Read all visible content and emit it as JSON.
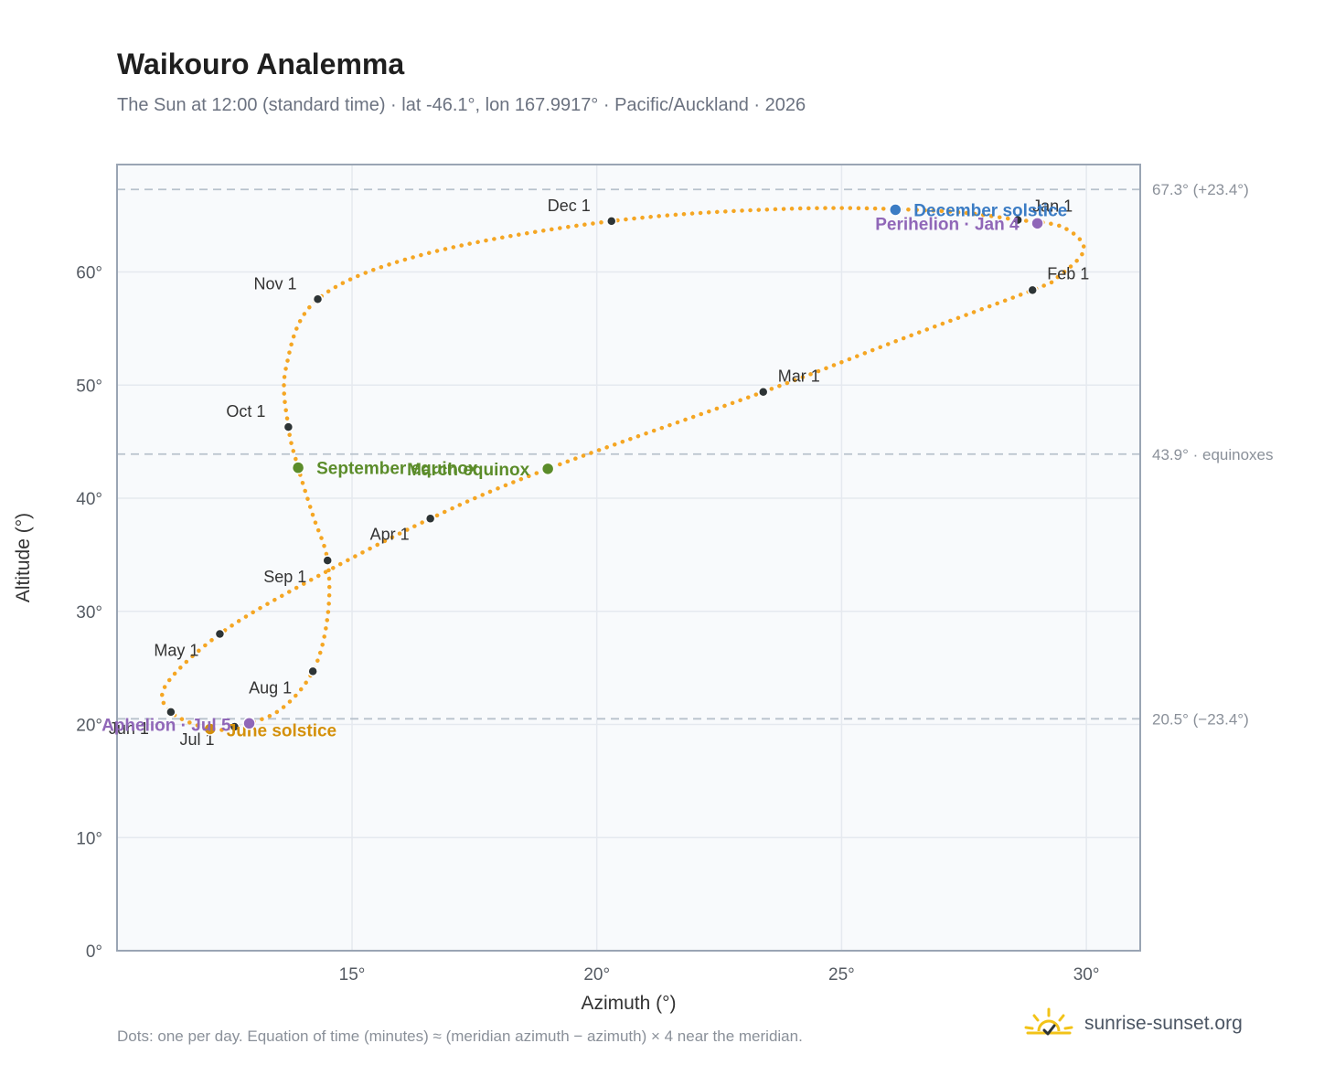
{
  "header": {
    "title": "Waikouro Analemma",
    "subtitle": "The Sun at 12:00 (standard time) · lat -46.1°, lon 167.9917° · Pacific/Auckland · 2026"
  },
  "footer": {
    "note": "Dots: one per day. Equation of time (minutes) ≈ (meridian azimuth − azimuth) × 4 near the meridian.",
    "brand": "sunrise-sunset.org",
    "brand_icon": "sun-check-icon"
  },
  "colors": {
    "curve": "#f5a623",
    "month_marker": "#2d3436",
    "equinox": "#5b8c2a",
    "december_solstice": "#3b7cc4",
    "june_solstice": "#d4900a",
    "apsis": "#9067b8",
    "reference_line": "#b8c2cc",
    "plot_bg": "#f8fafc",
    "grid": "#e5e9ef"
  },
  "chart_data": {
    "type": "scatter",
    "xlabel": "Azimuth (°)",
    "ylabel": "Altitude (°)",
    "xlim": [
      10.2,
      31.1
    ],
    "ylim": [
      0,
      69.5
    ],
    "x_ticks": [
      {
        "value": 15,
        "label": "15°"
      },
      {
        "value": 20,
        "label": "20°"
      },
      {
        "value": 25,
        "label": "25°"
      },
      {
        "value": 30,
        "label": "30°"
      }
    ],
    "y_ticks": [
      {
        "value": 0,
        "label": "0°"
      },
      {
        "value": 10,
        "label": "10°"
      },
      {
        "value": 20,
        "label": "20°"
      },
      {
        "value": 30,
        "label": "30°"
      },
      {
        "value": 40,
        "label": "40°"
      },
      {
        "value": 50,
        "label": "50°"
      },
      {
        "value": 60,
        "label": "60°"
      }
    ],
    "grid": true,
    "reference_lines": [
      {
        "value": 67.3,
        "label": "67.3° (+23.4°)"
      },
      {
        "value": 43.9,
        "label": "43.9° · equinoxes"
      },
      {
        "value": 20.5,
        "label": "20.5° (−23.4°)"
      }
    ],
    "month_markers": [
      {
        "label": "Jan 1",
        "x": 28.6,
        "y": 64.6
      },
      {
        "label": "Feb 1",
        "x": 28.9,
        "y": 58.4
      },
      {
        "label": "Mar 1",
        "x": 23.4,
        "y": 49.4
      },
      {
        "label": "Apr 1",
        "x": 16.6,
        "y": 38.2
      },
      {
        "label": "May 1",
        "x": 12.3,
        "y": 28.0
      },
      {
        "label": "Jun 1",
        "x": 11.3,
        "y": 21.1
      },
      {
        "label": "Jul 1",
        "x": 12.6,
        "y": 19.8
      },
      {
        "label": "Aug 1",
        "x": 14.2,
        "y": 24.7
      },
      {
        "label": "Sep 1",
        "x": 14.5,
        "y": 34.5
      },
      {
        "label": "Oct 1",
        "x": 13.7,
        "y": 46.3
      },
      {
        "label": "Nov 1",
        "x": 14.3,
        "y": 57.6
      },
      {
        "label": "Dec 1",
        "x": 20.3,
        "y": 64.5
      }
    ],
    "events": [
      {
        "label": "December solstice",
        "x": 26.1,
        "y": 65.5,
        "kind": "december_solstice"
      },
      {
        "label": "Perihelion · Jan 4",
        "x": 29.0,
        "y": 64.3,
        "kind": "apsis"
      },
      {
        "label": "March equinox",
        "x": 19.0,
        "y": 42.6,
        "kind": "equinox"
      },
      {
        "label": "September equinox",
        "x": 13.9,
        "y": 42.7,
        "kind": "equinox"
      },
      {
        "label": "June solstice",
        "x": 12.1,
        "y": 19.6,
        "kind": "june_solstice"
      },
      {
        "label": "Aphelion · Jul 5",
        "x": 12.9,
        "y": 20.1,
        "kind": "apsis"
      }
    ],
    "daily_path": [
      {
        "x": 28.6,
        "y": 64.6
      },
      {
        "x": 29.5,
        "y": 64.0
      },
      {
        "x": 29.95,
        "y": 62.0
      },
      {
        "x": 29.4,
        "y": 59.5
      },
      {
        "x": 28.9,
        "y": 58.4
      },
      {
        "x": 26.3,
        "y": 54.2
      },
      {
        "x": 23.4,
        "y": 49.4
      },
      {
        "x": 19.0,
        "y": 42.6
      },
      {
        "x": 16.6,
        "y": 38.2
      },
      {
        "x": 14.0,
        "y": 32.4
      },
      {
        "x": 12.3,
        "y": 28.0
      },
      {
        "x": 11.2,
        "y": 23.5
      },
      {
        "x": 11.3,
        "y": 21.1
      },
      {
        "x": 12.1,
        "y": 19.6
      },
      {
        "x": 12.6,
        "y": 19.8
      },
      {
        "x": 13.5,
        "y": 21.2
      },
      {
        "x": 14.2,
        "y": 24.7
      },
      {
        "x": 14.5,
        "y": 29.5
      },
      {
        "x": 14.5,
        "y": 34.5
      },
      {
        "x": 14.2,
        "y": 38.5
      },
      {
        "x": 13.9,
        "y": 42.7
      },
      {
        "x": 13.7,
        "y": 46.3
      },
      {
        "x": 13.65,
        "y": 51.5
      },
      {
        "x": 14.3,
        "y": 57.6
      },
      {
        "x": 16.5,
        "y": 61.6
      },
      {
        "x": 20.3,
        "y": 64.5
      },
      {
        "x": 24.0,
        "y": 65.6
      },
      {
        "x": 27.0,
        "y": 65.4
      },
      {
        "x": 28.6,
        "y": 64.6
      }
    ]
  }
}
